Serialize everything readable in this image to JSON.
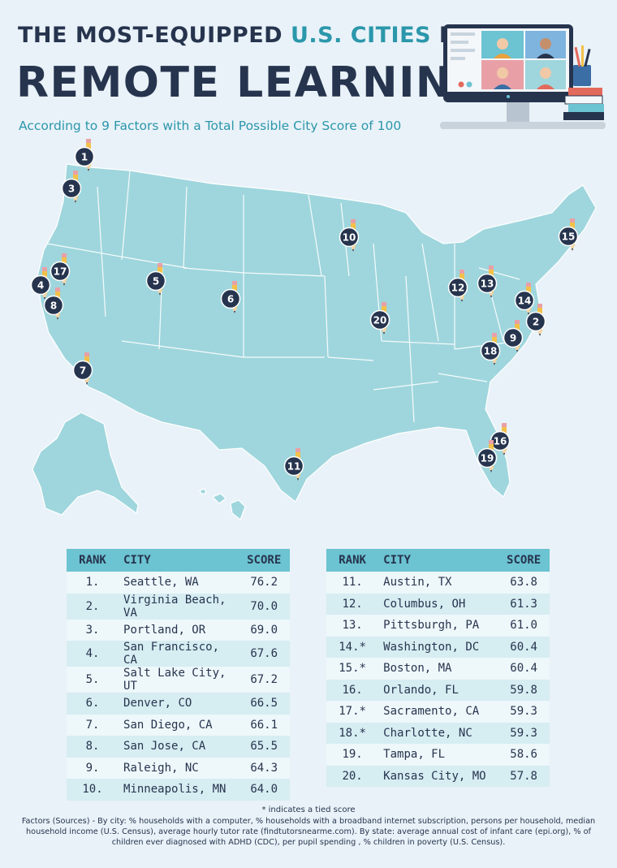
{
  "header": {
    "line1_part1": "THE MOST-EQUIPPED ",
    "line1_part2": "U.S. CITIES",
    "line1_part3": " FOR",
    "line2": "REMOTE LEARNING",
    "subtitle": "According to 9 Factors with a Total Possible City Score of 100"
  },
  "colors": {
    "navy": "#26344e",
    "teal": "#2b97ab",
    "map_land": "#9fd6dd",
    "table_header": "#6cc3d1",
    "pencil": "#f3c14a",
    "background": "#e9f2f8"
  },
  "map": {
    "markers": [
      {
        "label": "1",
        "city": "Seattle, WA"
      },
      {
        "label": "2",
        "city": "Virginia Beach, VA"
      },
      {
        "label": "3",
        "city": "Portland, OR"
      },
      {
        "label": "4",
        "city": "San Francisco, CA"
      },
      {
        "label": "5",
        "city": "Salt Lake City, UT"
      },
      {
        "label": "6",
        "city": "Denver, CO"
      },
      {
        "label": "7",
        "city": "San Diego, CA"
      },
      {
        "label": "8",
        "city": "San Jose, CA"
      },
      {
        "label": "9",
        "city": "Raleigh, NC"
      },
      {
        "label": "10",
        "city": "Minneapolis, MN"
      },
      {
        "label": "11",
        "city": "Austin, TX"
      },
      {
        "label": "12",
        "city": "Columbus, OH"
      },
      {
        "label": "13",
        "city": "Pittsburgh, PA"
      },
      {
        "label": "14",
        "city": "Washington, DC"
      },
      {
        "label": "15",
        "city": "Boston, MA"
      },
      {
        "label": "16",
        "city": "Orlando, FL"
      },
      {
        "label": "17",
        "city": "Sacramento, CA"
      },
      {
        "label": "18",
        "city": "Charlotte, NC"
      },
      {
        "label": "19",
        "city": "Tampa, FL"
      },
      {
        "label": "20",
        "city": "Kansas City, MO"
      }
    ]
  },
  "table": {
    "headers": {
      "rank": "RANK",
      "city": "CITY",
      "score": "SCORE"
    },
    "left": [
      {
        "rank": "1.",
        "city": "Seattle, WA",
        "score": "76.2"
      },
      {
        "rank": "2.",
        "city": "Virginia Beach, VA",
        "score": "70.0"
      },
      {
        "rank": "3.",
        "city": "Portland, OR",
        "score": "69.0"
      },
      {
        "rank": "4.",
        "city": "San Francisco, CA",
        "score": "67.6"
      },
      {
        "rank": "5.",
        "city": "Salt Lake City, UT",
        "score": "67.2"
      },
      {
        "rank": "6.",
        "city": "Denver, CO",
        "score": "66.5"
      },
      {
        "rank": "7.",
        "city": "San Diego, CA",
        "score": "66.1"
      },
      {
        "rank": "8.",
        "city": "San Jose, CA",
        "score": "65.5"
      },
      {
        "rank": "9.",
        "city": "Raleigh, NC",
        "score": "64.3"
      },
      {
        "rank": "10.",
        "city": "Minneapolis, MN",
        "score": "64.0"
      }
    ],
    "right": [
      {
        "rank": "11.",
        "city": "Austin, TX",
        "score": "63.8"
      },
      {
        "rank": "12.",
        "city": "Columbus, OH",
        "score": "61.3"
      },
      {
        "rank": "13.",
        "city": "Pittsburgh, PA",
        "score": "61.0"
      },
      {
        "rank": "14.*",
        "city": "Washington, DC",
        "score": "60.4"
      },
      {
        "rank": "15.*",
        "city": "Boston, MA",
        "score": "60.4"
      },
      {
        "rank": "16.",
        "city": "Orlando, FL",
        "score": "59.8"
      },
      {
        "rank": "17.*",
        "city": "Sacramento, CA",
        "score": "59.3"
      },
      {
        "rank": "18.*",
        "city": "Charlotte, NC",
        "score": "59.3"
      },
      {
        "rank": "19.",
        "city": "Tampa, FL",
        "score": "58.6"
      },
      {
        "rank": "20.",
        "city": "Kansas City, MO",
        "score": "57.8"
      }
    ]
  },
  "footer": {
    "tie_note": "* indicates a tied score",
    "sources": "Factors (Sources) - By city: % households with a computer, % households with a broadband internet subscription, persons per household, median household income (U.S. Census), average hourly tutor rate (findtutorsnearme.com). By state: average annual cost of infant care (epi.org), % of children ever diagnosed with ADHD (CDC), per pupil spending , % children in poverty (U.S. Census)."
  }
}
